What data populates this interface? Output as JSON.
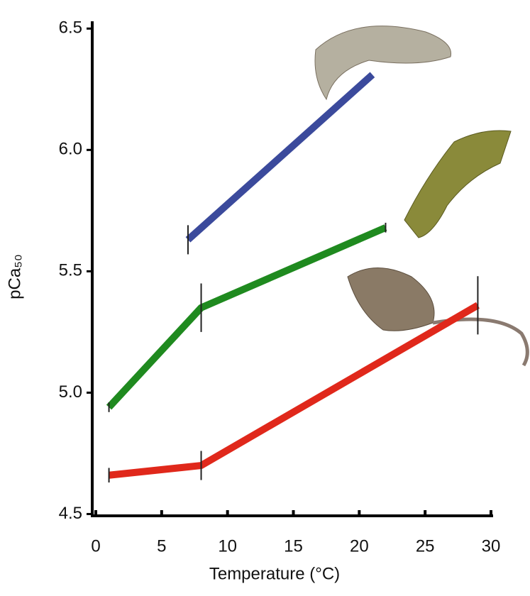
{
  "chart_data": {
    "type": "line",
    "x_label": "Temperature (°C)",
    "y_label": "pCa₅₀",
    "xlim": [
      0,
      30
    ],
    "xticks": [
      0,
      5,
      10,
      15,
      20,
      25,
      30
    ],
    "ylim": [
      4.44,
      6.53
    ],
    "yticks": [
      4.5,
      {
        "value": 5,
        "label": "5.0"
      },
      5.5,
      {
        "value": 6,
        "label": "6.0"
      },
      6.5
    ],
    "series": [
      {
        "color": "#3b4a9c",
        "x": [
          7,
          21
        ],
        "values": [
          5.63,
          6.31
        ],
        "errors": [
          0.06,
          null
        ]
      },
      {
        "color": "#1f8a1f",
        "x": [
          1,
          8,
          22
        ],
        "values": [
          4.94,
          5.35,
          5.68
        ],
        "errors": [
          0.02,
          0.1,
          0.02
        ]
      },
      {
        "color": "#e0281b",
        "x": [
          1,
          8,
          29
        ],
        "values": [
          4.66,
          4.7,
          5.36
        ],
        "errors": [
          0.03,
          0.06,
          0.12
        ]
      }
    ]
  }
}
